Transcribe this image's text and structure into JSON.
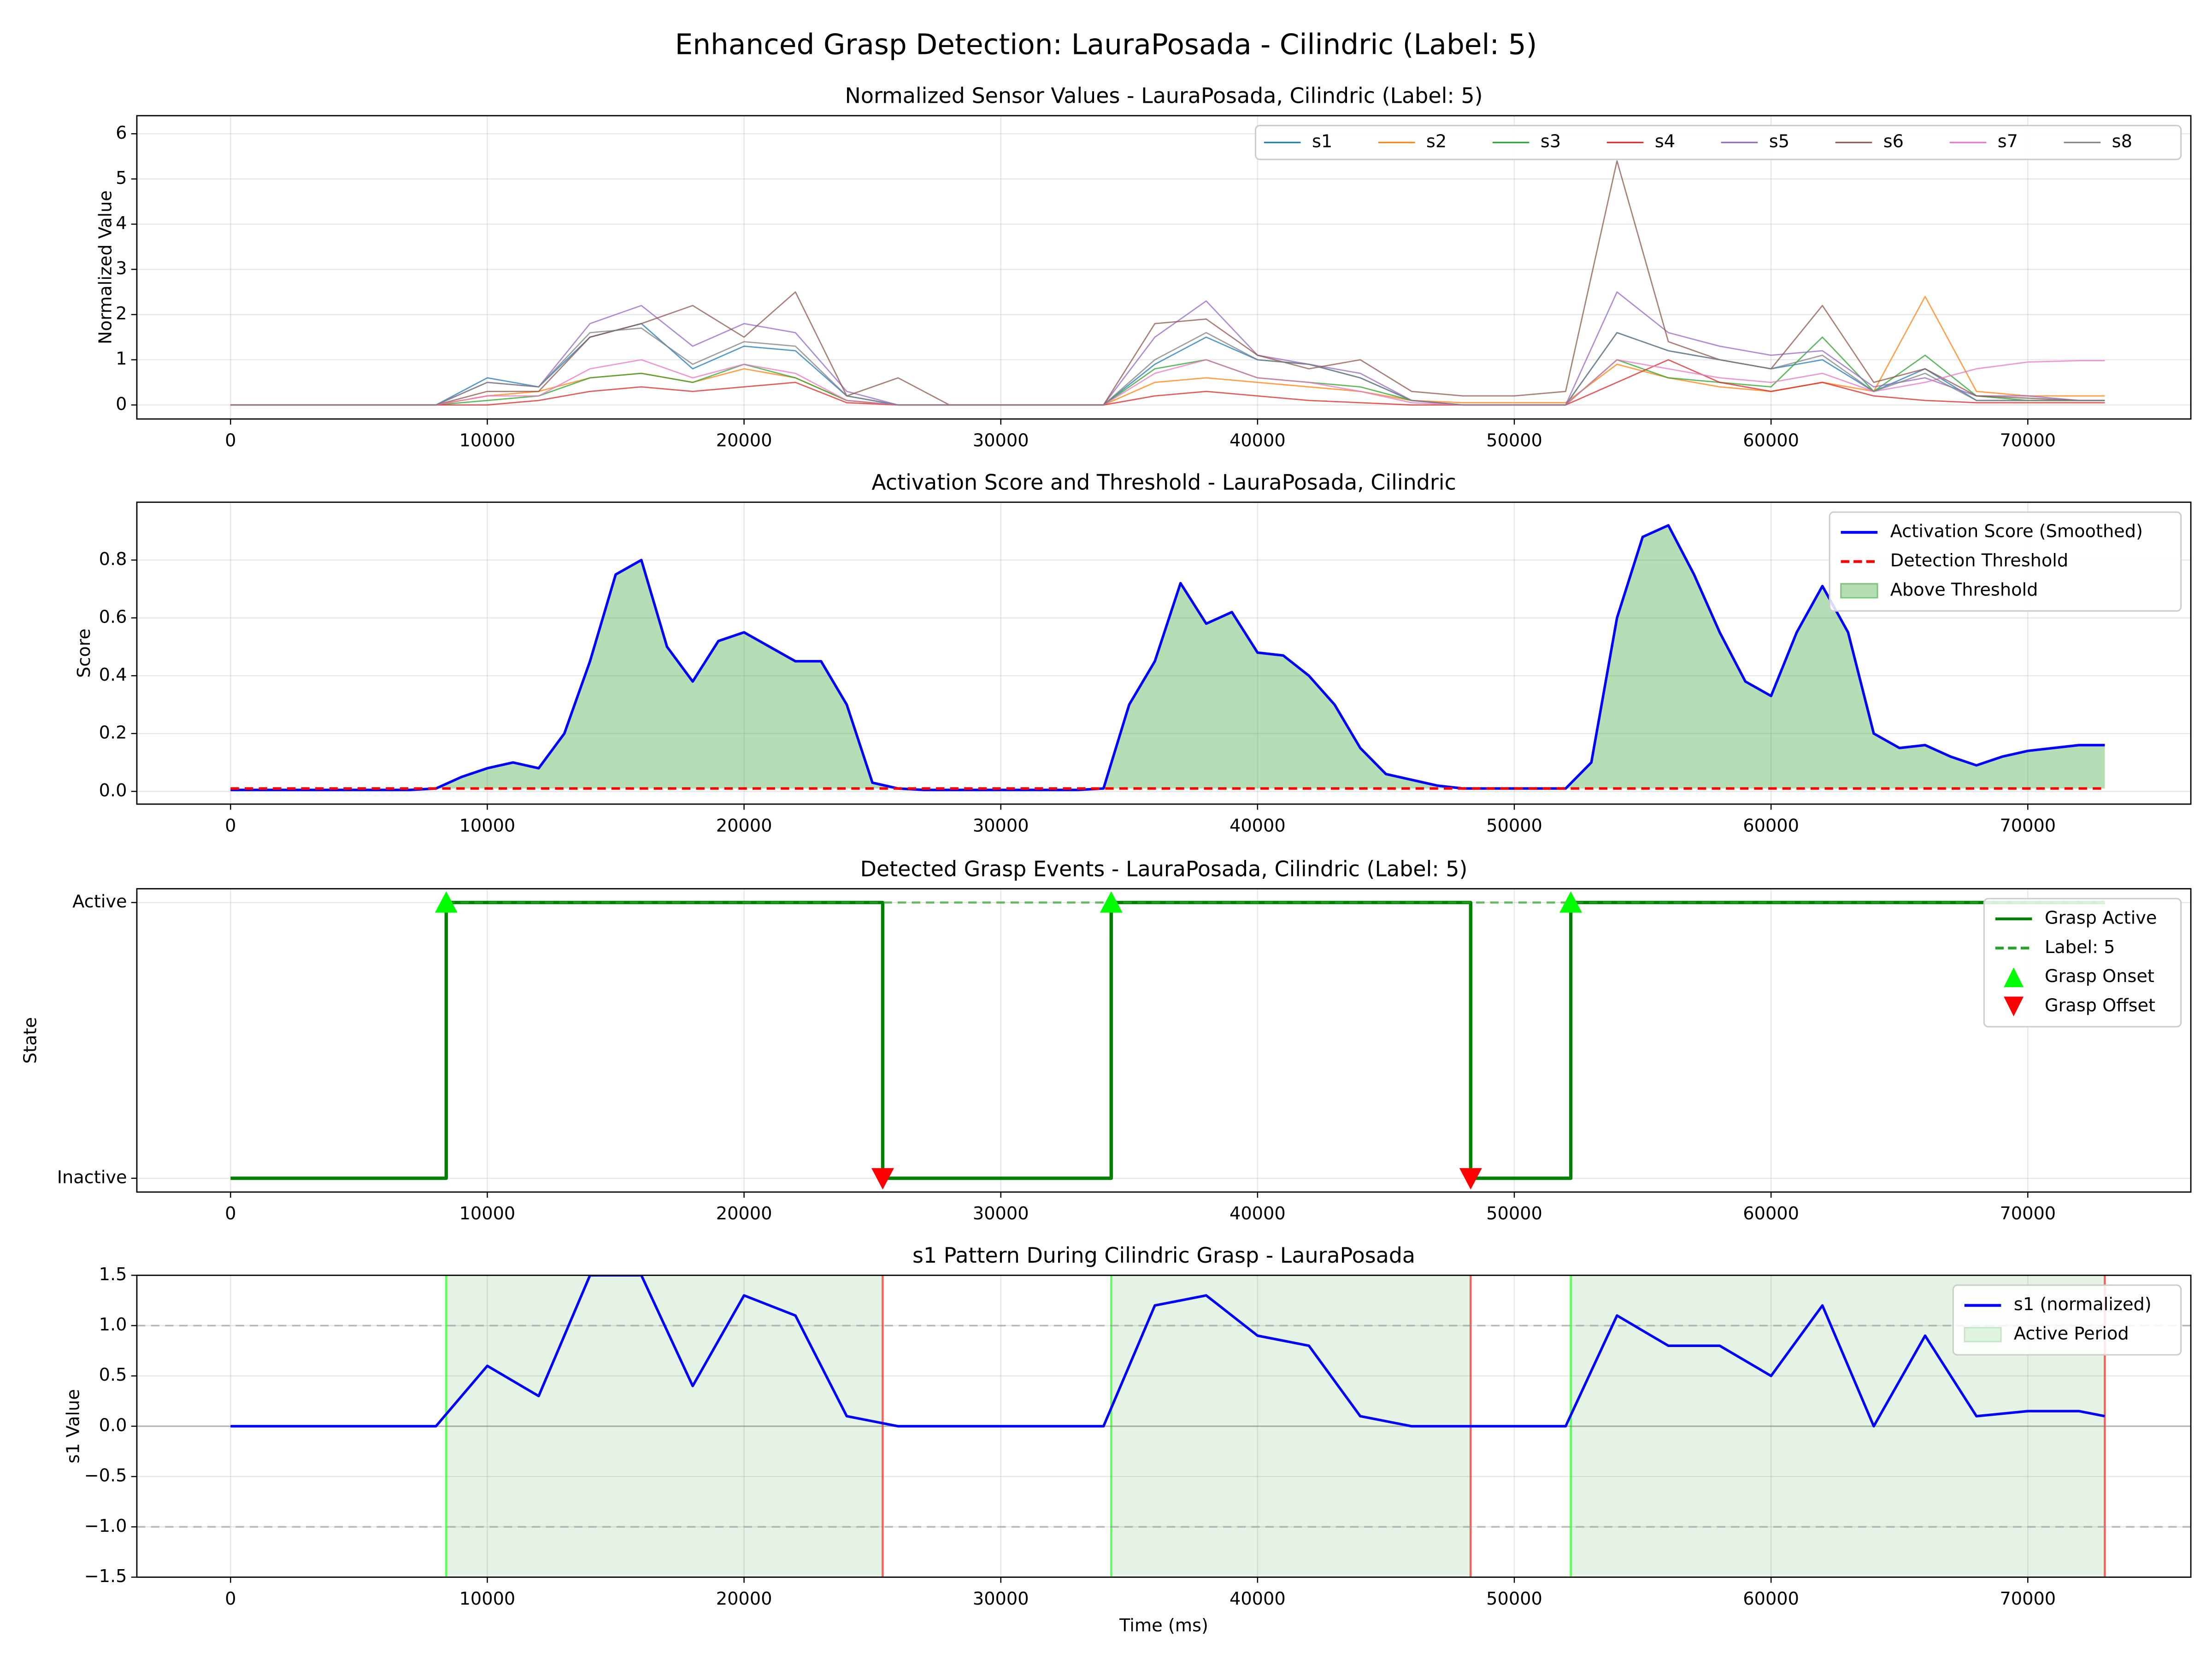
{
  "title": "Enhanced Grasp Detection: LauraPosada - Cilindric (Label: 5)",
  "chart_data": [
    {
      "type": "line",
      "title": "Normalized Sensor Values - LauraPosada, Cilindric (Label: 5)",
      "ylabel": "Normalized Value",
      "x": [
        0,
        2000,
        4000,
        6000,
        8000,
        10000,
        12000,
        14000,
        16000,
        18000,
        20000,
        22000,
        24000,
        26000,
        28000,
        30000,
        32000,
        34000,
        36000,
        38000,
        40000,
        42000,
        44000,
        46000,
        48000,
        50000,
        52000,
        54000,
        56000,
        58000,
        60000,
        62000,
        64000,
        66000,
        68000,
        70000,
        72000,
        73000
      ],
      "series": [
        {
          "name": "s1",
          "color": "#1f77b4",
          "values": [
            0,
            0,
            0,
            0,
            0,
            0.6,
            0.4,
            1.5,
            1.8,
            0.8,
            1.3,
            1.2,
            0.2,
            0,
            0,
            0,
            0,
            0,
            0.9,
            1.5,
            1.0,
            0.9,
            0.6,
            0.1,
            0,
            0,
            0,
            1.6,
            1.2,
            1.0,
            0.8,
            1.0,
            0.3,
            0.8,
            0.1,
            0.1,
            0.1,
            0.1
          ]
        },
        {
          "name": "s2",
          "color": "#ff7f0e",
          "values": [
            0,
            0,
            0,
            0,
            0,
            0.2,
            0.3,
            0.6,
            0.7,
            0.5,
            0.8,
            0.6,
            0.1,
            0,
            0,
            0,
            0,
            0,
            0.5,
            0.6,
            0.5,
            0.4,
            0.3,
            0.1,
            0.05,
            0.05,
            0.05,
            0.9,
            0.6,
            0.4,
            0.3,
            0.5,
            0.3,
            2.4,
            0.3,
            0.2,
            0.2,
            0.2
          ]
        },
        {
          "name": "s3",
          "color": "#2ca02c",
          "values": [
            0,
            0,
            0,
            0,
            0,
            0.1,
            0.2,
            0.6,
            0.7,
            0.5,
            0.9,
            0.6,
            0.1,
            0,
            0,
            0,
            0,
            0,
            0.8,
            1.0,
            0.6,
            0.5,
            0.4,
            0.1,
            0,
            0,
            0,
            1.0,
            0.6,
            0.5,
            0.4,
            1.5,
            0.3,
            1.1,
            0.2,
            0.1,
            0.1,
            0.1
          ]
        },
        {
          "name": "s4",
          "color": "#d62728",
          "values": [
            0,
            0,
            0,
            0,
            0,
            0,
            0.1,
            0.3,
            0.4,
            0.3,
            0.4,
            0.5,
            0.05,
            0,
            0,
            0,
            0,
            0,
            0.2,
            0.3,
            0.2,
            0.1,
            0.05,
            0,
            0,
            0,
            0,
            0.5,
            1.0,
            0.5,
            0.3,
            0.5,
            0.2,
            0.1,
            0.05,
            0.05,
            0.05,
            0.05
          ]
        },
        {
          "name": "s5",
          "color": "#9467bd",
          "values": [
            0,
            0,
            0,
            0,
            0,
            0.5,
            0.4,
            1.8,
            2.2,
            1.3,
            1.8,
            1.6,
            0.3,
            0,
            0,
            0,
            0,
            0,
            1.5,
            2.3,
            1.1,
            0.9,
            0.7,
            0.1,
            0,
            0,
            0,
            2.5,
            1.6,
            1.3,
            1.1,
            1.2,
            0.4,
            0.6,
            0.2,
            0.2,
            0.1,
            0.1
          ]
        },
        {
          "name": "s6",
          "color": "#8c564b",
          "values": [
            0,
            0,
            0,
            0,
            0,
            0.3,
            0.3,
            1.5,
            1.8,
            2.2,
            1.5,
            2.5,
            0.2,
            0.6,
            0,
            0,
            0,
            0,
            1.8,
            1.9,
            1.1,
            0.8,
            1.0,
            0.3,
            0.2,
            0.2,
            0.3,
            5.4,
            1.4,
            1.0,
            0.8,
            2.2,
            0.5,
            0.8,
            0.2,
            0.15,
            0.1,
            0.1
          ]
        },
        {
          "name": "s7",
          "color": "#e377c2",
          "values": [
            0,
            0,
            0,
            0,
            0,
            0.2,
            0.2,
            0.8,
            1.0,
            0.6,
            0.9,
            0.7,
            0.1,
            0,
            0,
            0,
            0,
            0,
            0.7,
            1.0,
            0.6,
            0.5,
            0.3,
            0.05,
            0,
            0,
            0,
            1.0,
            0.8,
            0.6,
            0.5,
            0.7,
            0.3,
            0.5,
            0.8,
            0.95,
            0.98,
            0.98
          ]
        },
        {
          "name": "s8",
          "color": "#7f7f7f",
          "values": [
            0,
            0,
            0,
            0,
            0,
            0.5,
            0.4,
            1.6,
            1.7,
            0.9,
            1.4,
            1.3,
            0.2,
            0,
            0,
            0,
            0,
            0,
            1.0,
            1.6,
            1.0,
            0.9,
            0.6,
            0.1,
            0,
            0,
            0,
            1.6,
            1.2,
            1.0,
            0.8,
            1.1,
            0.3,
            0.7,
            0.1,
            0.1,
            0.1,
            0.1
          ]
        }
      ],
      "xlim": [
        -3650,
        76350
      ],
      "xticks": [
        0,
        10000,
        20000,
        30000,
        40000,
        50000,
        60000,
        70000
      ],
      "ylim": [
        -0.31,
        6.4
      ],
      "yticks": [
        0,
        1,
        2,
        3,
        4,
        5,
        6
      ],
      "grid": true,
      "legend": "upper right",
      "legend_columns": 8
    },
    {
      "type": "line",
      "title": "Activation Score and Threshold - LauraPosada, Cilindric",
      "ylabel": "Score",
      "x": [
        0,
        1000,
        2000,
        3000,
        4000,
        5000,
        6000,
        7000,
        8000,
        9000,
        10000,
        11000,
        12000,
        13000,
        14000,
        15000,
        16000,
        17000,
        18000,
        19000,
        20000,
        21000,
        22000,
        23000,
        24000,
        25000,
        26000,
        27000,
        28000,
        29000,
        30000,
        31000,
        32000,
        33000,
        34000,
        35000,
        36000,
        37000,
        38000,
        39000,
        40000,
        41000,
        42000,
        43000,
        44000,
        45000,
        46000,
        47000,
        48000,
        49000,
        50000,
        51000,
        52000,
        53000,
        54000,
        55000,
        56000,
        57000,
        58000,
        59000,
        60000,
        61000,
        62000,
        63000,
        64000,
        65000,
        66000,
        67000,
        68000,
        69000,
        70000,
        71000,
        72000,
        73000
      ],
      "series": [
        {
          "name": "Activation Score (Smoothed)",
          "color": "#0000ff",
          "values": [
            0.005,
            0.005,
            0.005,
            0.005,
            0.005,
            0.005,
            0.005,
            0.005,
            0.01,
            0.05,
            0.08,
            0.1,
            0.08,
            0.2,
            0.45,
            0.75,
            0.8,
            0.5,
            0.38,
            0.52,
            0.55,
            0.5,
            0.45,
            0.45,
            0.3,
            0.03,
            0.01,
            0.005,
            0.005,
            0.005,
            0.005,
            0.005,
            0.005,
            0.005,
            0.01,
            0.3,
            0.45,
            0.72,
            0.58,
            0.62,
            0.48,
            0.47,
            0.4,
            0.3,
            0.15,
            0.06,
            0.04,
            0.02,
            0.01,
            0.01,
            0.01,
            0.01,
            0.01,
            0.1,
            0.6,
            0.88,
            0.92,
            0.75,
            0.55,
            0.38,
            0.33,
            0.55,
            0.71,
            0.55,
            0.2,
            0.15,
            0.16,
            0.12,
            0.09,
            0.12,
            0.14,
            0.15,
            0.16,
            0.16
          ]
        },
        {
          "name": "Detection Threshold",
          "color": "#ff0000",
          "style": "dashed",
          "x": [
            0,
            73000
          ],
          "values": [
            0.01,
            0.01
          ]
        },
        {
          "name": "Above Threshold",
          "type": "fill",
          "color": "#2ca02c"
        }
      ],
      "xlim": [
        -3650,
        76350
      ],
      "xticks": [
        0,
        10000,
        20000,
        30000,
        40000,
        50000,
        60000,
        70000
      ],
      "ylim": [
        -0.044,
        1.0
      ],
      "yticks": [
        {
          "value": 0,
          "label": "0.0"
        },
        {
          "value": 0.2,
          "label": "0.2"
        },
        {
          "value": 0.4,
          "label": "0.4"
        },
        {
          "value": 0.6,
          "label": "0.6"
        },
        {
          "value": 0.8,
          "label": "0.8"
        }
      ],
      "grid": true,
      "legend": "upper right"
    },
    {
      "type": "step",
      "title": "Detected Grasp Events - LauraPosada, Cilindric (Label: 5)",
      "ylabel": "State",
      "x": [
        0,
        8400,
        8400,
        25400,
        25400,
        34300,
        34300,
        48300,
        48300,
        52200,
        52200,
        73000
      ],
      "series": [
        {
          "name": "Grasp Active",
          "color": "#008000",
          "values": [
            0,
            0,
            1,
            1,
            0,
            0,
            1,
            1,
            0,
            0,
            1,
            1
          ]
        },
        {
          "name": "Label: 5",
          "color": "#2ca02c",
          "style": "dashed",
          "x": [
            8400,
            73000
          ],
          "values": [
            1,
            1
          ]
        },
        {
          "name": "Grasp Onset",
          "type": "marker",
          "marker": "^",
          "color": "#00ff00",
          "x": [
            8400,
            34300,
            52200
          ],
          "values": [
            1,
            1,
            1
          ]
        },
        {
          "name": "Grasp Offset",
          "type": "marker",
          "marker": "v",
          "color": "#ff0000",
          "x": [
            25400,
            48300
          ],
          "values": [
            0,
            0
          ]
        }
      ],
      "xlim": [
        -3650,
        76350
      ],
      "xticks": [
        0,
        10000,
        20000,
        30000,
        40000,
        50000,
        60000,
        70000
      ],
      "ylim": [
        -0.05,
        1.05
      ],
      "yticks": [
        {
          "value": 0,
          "label": "Inactive"
        },
        {
          "value": 1,
          "label": "Active"
        }
      ],
      "grid": true,
      "legend": "upper right"
    },
    {
      "type": "line",
      "title": "s1 Pattern During Cilindric Grasp - LauraPosada",
      "xlabel": "Time (ms)",
      "ylabel": "s1 Value",
      "x": [
        0,
        2000,
        4000,
        6000,
        8000,
        10000,
        12000,
        14000,
        16000,
        18000,
        20000,
        22000,
        24000,
        26000,
        28000,
        30000,
        32000,
        34000,
        36000,
        38000,
        40000,
        42000,
        44000,
        46000,
        48000,
        50000,
        52000,
        54000,
        56000,
        58000,
        60000,
        62000,
        64000,
        66000,
        68000,
        70000,
        72000,
        73000
      ],
      "series": [
        {
          "name": "s1 (normalized)",
          "color": "#0000ff",
          "values": [
            0,
            0,
            0,
            0,
            0,
            0.6,
            0.3,
            1.5,
            1.5,
            0.4,
            1.3,
            1.1,
            0.1,
            0,
            0,
            0,
            0,
            0,
            1.2,
            1.3,
            0.9,
            0.8,
            0.1,
            0,
            0,
            0,
            0,
            1.1,
            0.8,
            0.8,
            0.5,
            1.2,
            0,
            0.9,
            0.1,
            0.15,
            0.15,
            0.1
          ]
        }
      ],
      "spans": {
        "name": "Active Period",
        "color": "#2ca02c",
        "ranges": [
          [
            8400,
            25400
          ],
          [
            34300,
            48300
          ],
          [
            52200,
            73000
          ]
        ]
      },
      "dashed_hlines": [
        -1,
        1
      ],
      "zero_line": true,
      "xlim": [
        -3650,
        76350
      ],
      "xticks": [
        0,
        10000,
        20000,
        30000,
        40000,
        50000,
        60000,
        70000
      ],
      "ylim": [
        -1.5,
        1.5
      ],
      "yticks": [
        {
          "value": -1.5,
          "label": "−1.5"
        },
        {
          "value": -1.0,
          "label": "−1.0"
        },
        {
          "value": -0.5,
          "label": "−0.5"
        },
        {
          "value": 0,
          "label": "0.0"
        },
        {
          "value": 0.5,
          "label": "0.5"
        },
        {
          "value": 1.0,
          "label": "1.0"
        },
        {
          "value": 1.5,
          "label": "1.5"
        }
      ],
      "grid": true,
      "legend": "upper right"
    }
  ]
}
